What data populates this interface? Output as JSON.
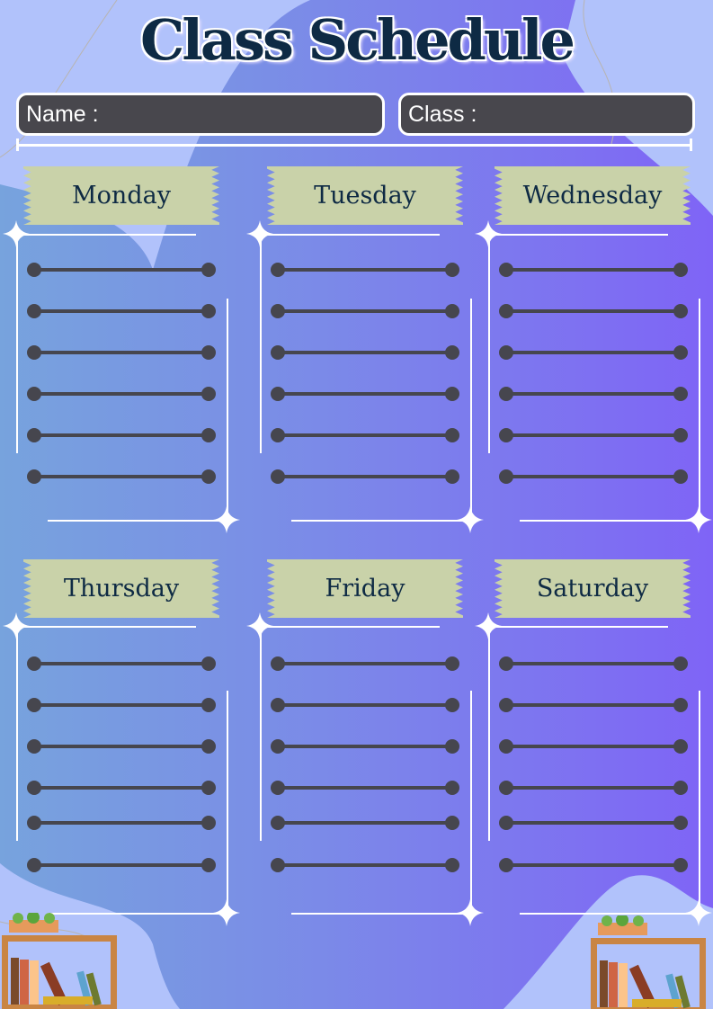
{
  "header": {
    "title": "Class Schedule"
  },
  "fields": {
    "name_label": "Name :",
    "class_label": "Class :"
  },
  "days": [
    {
      "label": "Monday"
    },
    {
      "label": "Tuesday"
    },
    {
      "label": "Wednesday"
    },
    {
      "label": "Thursday"
    },
    {
      "label": "Friday"
    },
    {
      "label": "Saturday"
    }
  ],
  "colors": {
    "tape": "#c9d2a9",
    "ink": "#0e2a44",
    "line": "#46464e",
    "field": "#48474d"
  }
}
